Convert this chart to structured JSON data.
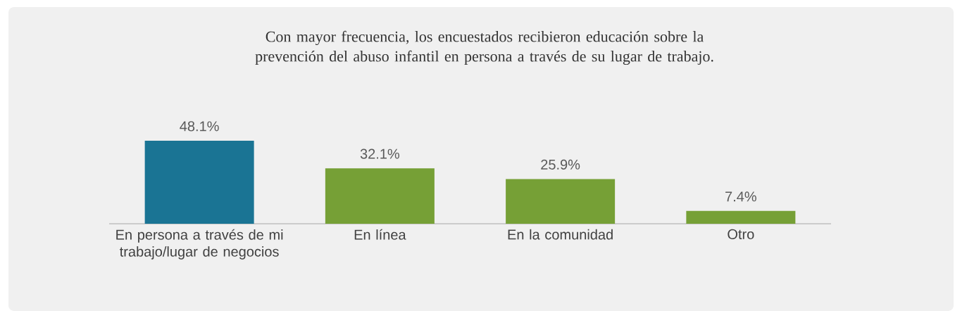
{
  "chart_data": {
    "type": "bar",
    "title": "Con mayor frecuencia, los encuestados recibieron educación sobre la prevención del abuso infantil en persona a través de su lugar de trabajo.",
    "categories": [
      "En persona a través de mi trabajo/lugar de negocios",
      "En línea",
      "En la comunidad",
      "Otro"
    ],
    "values": [
      48.1,
      32.1,
      25.9,
      7.4
    ],
    "colors": [
      "#1a7494",
      "#76a036",
      "#76a036",
      "#76a036"
    ],
    "value_labels": [
      "48.1%",
      "32.1%",
      "25.9%",
      "7.4%"
    ]
  }
}
